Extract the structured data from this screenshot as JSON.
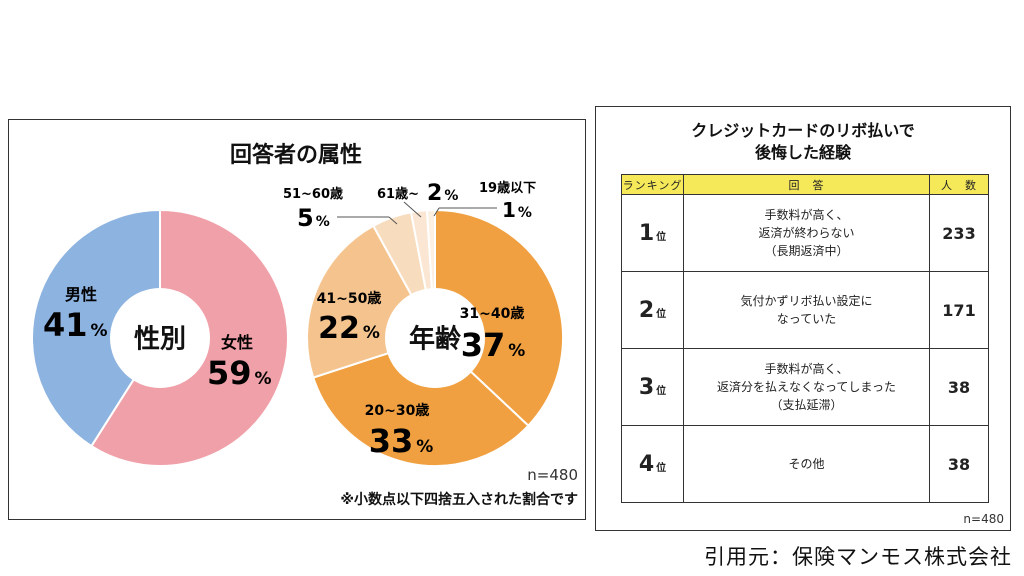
{
  "chart_data": [
    {
      "type": "pie",
      "title": "回答者の属性",
      "center_label": "性別",
      "slices": [
        {
          "label": "女性",
          "value": 59,
          "value_text": "59",
          "color": "#f0a0a8"
        },
        {
          "label": "男性",
          "value": 41,
          "value_text": "41",
          "color": "#8db3e0"
        }
      ]
    },
    {
      "type": "pie",
      "center_label": "年齢",
      "slices": [
        {
          "label": "31~40歳",
          "value": 37,
          "value_text": "37",
          "color": "#f0a040"
        },
        {
          "label": "20~30歳",
          "value": 33,
          "value_text": "33",
          "color": "#f0a040"
        },
        {
          "label": "41~50歳",
          "value": 22,
          "value_text": "22",
          "color": "#f5c48e"
        },
        {
          "label": "51~60歳",
          "value": 5,
          "value_text": "5",
          "color": "#f8dcbe"
        },
        {
          "label": "61歳~",
          "value": 2,
          "value_text": "2",
          "color": "#fae6d2"
        },
        {
          "label": "19歳以下",
          "value": 1,
          "value_text": "1",
          "color": "#fcf0e3"
        }
      ],
      "n_text": "n=480",
      "note": "※小数点以下四捨五入された割合です"
    },
    {
      "type": "table",
      "title_line1": "クレジットカードのリボ払いで",
      "title_line2": "後悔した経験",
      "headers": [
        "ランキング",
        "回　答",
        "人　数"
      ],
      "rank_unit": "位",
      "rows": [
        {
          "rank": "1",
          "answer": [
            "手数料が高く、",
            "返済が終わらない",
            "（長期返済中）"
          ],
          "count": 233
        },
        {
          "rank": "2",
          "answer": [
            "気付かずリボ払い設定に",
            "なっていた"
          ],
          "count": 171
        },
        {
          "rank": "3",
          "answer": [
            "手数料が高く、",
            "返済分を払えなくなってしまった",
            "（支払延滞）"
          ],
          "count": 38
        },
        {
          "rank": "4",
          "answer": [
            "その他"
          ],
          "count": 38
        }
      ],
      "n_text": "n=480"
    }
  ],
  "percent_sign": "%",
  "source": "引用元：保険マンモス株式会社"
}
